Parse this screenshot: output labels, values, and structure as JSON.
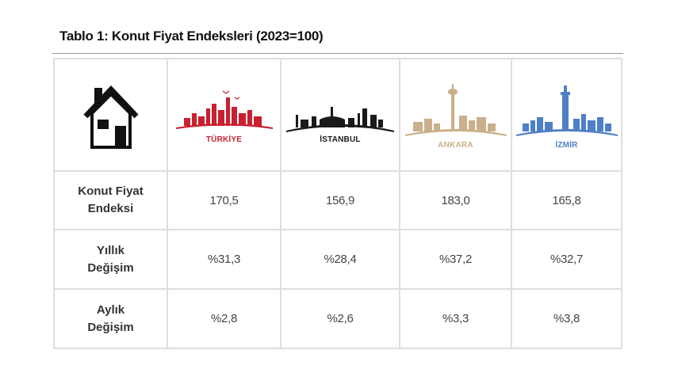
{
  "title": "Tablo 1: Konut Fiyat Endeksleri (2023=100)",
  "icons": {
    "house": "house-icon"
  },
  "cities": [
    {
      "name": "TÜRKİYE",
      "color": "#c8202f",
      "icon": "turkiye-skyline-icon"
    },
    {
      "name": "İSTANBUL",
      "color": "#1a1a1a",
      "icon": "istanbul-skyline-icon"
    },
    {
      "name": "ANKARA",
      "color": "#c9b08a",
      "icon": "ankara-skyline-icon"
    },
    {
      "name": "İZMİR",
      "color": "#4f7fc6",
      "icon": "izmir-skyline-icon"
    }
  ],
  "rows": [
    {
      "label_line1": "Konut Fiyat",
      "label_line2": "Endeksi",
      "values": [
        "170,5",
        "156,9",
        "183,0",
        "165,8"
      ]
    },
    {
      "label_line1": "Yıllık",
      "label_line2": "Değişim",
      "values": [
        "%31,3",
        "%28,4",
        "%37,2",
        "%32,7"
      ]
    },
    {
      "label_line1": "Aylık",
      "label_line2": "Değişim",
      "values": [
        "%2,8",
        "%2,6",
        "%3,3",
        "%3,8"
      ]
    }
  ]
}
